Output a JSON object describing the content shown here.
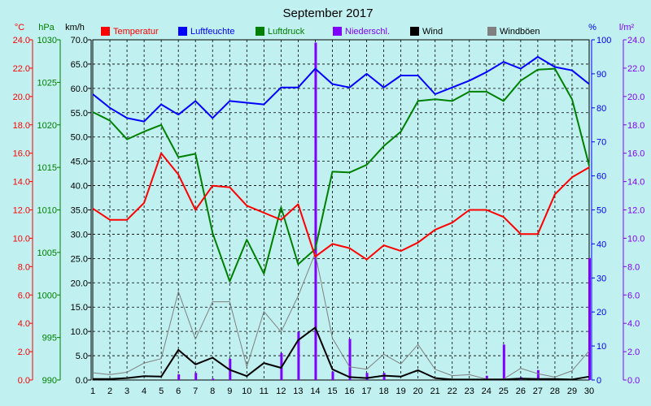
{
  "chart_data": {
    "type": "line",
    "title": "September 2017",
    "x": [
      1,
      2,
      3,
      4,
      5,
      6,
      7,
      8,
      9,
      10,
      11,
      12,
      13,
      14,
      15,
      16,
      17,
      18,
      19,
      20,
      21,
      22,
      23,
      24,
      25,
      26,
      27,
      28,
      29,
      30
    ],
    "xlim": [
      1,
      30
    ],
    "grid": true,
    "legend_position": "top",
    "axes": {
      "temp": {
        "unit": "°C",
        "range": [
          0,
          24
        ],
        "ticks": [
          "0.0",
          "2.0",
          "4.0",
          "6.0",
          "8.0",
          "10.0",
          "12.0",
          "14.0",
          "16.0",
          "18.0",
          "20.0",
          "22.0",
          "24.0"
        ],
        "color": "#ff0000"
      },
      "pressure": {
        "unit": "hPa",
        "range": [
          990,
          1030
        ],
        "ticks": [
          "990",
          "995",
          "1000",
          "1005",
          "1010",
          "1015",
          "1020",
          "1025",
          "1030"
        ],
        "color": "#008000"
      },
      "wind": {
        "unit": "km/h",
        "range": [
          0,
          70
        ],
        "ticks": [
          "0.0",
          "5.0",
          "10.0",
          "15.0",
          "20.0",
          "25.0",
          "30.0",
          "35.0",
          "40.0",
          "45.0",
          "50.0",
          "55.0",
          "60.0",
          "65.0",
          "70.0"
        ],
        "color": "#000000"
      },
      "humidity": {
        "unit": "%",
        "range": [
          0,
          100
        ],
        "ticks": [
          "0",
          "10",
          "20",
          "30",
          "40",
          "50",
          "60",
          "70",
          "80",
          "90",
          "100"
        ],
        "color": "#0000ff"
      },
      "rain": {
        "unit": "l/m²",
        "range": [
          0,
          24
        ],
        "ticks": [
          "0.0",
          "2.0",
          "4.0",
          "6.0",
          "8.0",
          "10.0",
          "12.0",
          "14.0",
          "16.0",
          "18.0",
          "20.0",
          "22.0",
          "24.0"
        ],
        "color": "#8000ff"
      }
    },
    "series": [
      {
        "name": "Temperatur",
        "axis": "temp",
        "color": "#ff0000",
        "style": "line",
        "values": [
          12.1,
          11.3,
          11.3,
          12.5,
          16.0,
          14.5,
          12.0,
          13.7,
          13.6,
          12.3,
          11.8,
          11.3,
          12.4,
          8.7,
          9.6,
          9.3,
          8.5,
          9.5,
          9.1,
          9.7,
          10.6,
          11.1,
          12.0,
          12.0,
          11.5,
          10.3,
          10.3,
          13.1,
          14.3,
          15.0
        ]
      },
      {
        "name": "Luftfeuchte",
        "axis": "humidity",
        "color": "#0000ff",
        "style": "line",
        "values": [
          84,
          80,
          77,
          76,
          81,
          78,
          82,
          77,
          82,
          81.5,
          81,
          86,
          86,
          91.5,
          87,
          86,
          90,
          86,
          89.5,
          89.5,
          84,
          86,
          88,
          90.5,
          93.5,
          91.5,
          95,
          92,
          91,
          87
        ]
      },
      {
        "name": "Luftdruck",
        "axis": "pressure",
        "color": "#008000",
        "style": "line",
        "values": [
          1021.5,
          1020.5,
          1018.3,
          1019.2,
          1020.0,
          1016.2,
          1016.6,
          1007.3,
          1001.6,
          1006.5,
          1002.5,
          1010.3,
          1003.6,
          1005.4,
          1014.5,
          1014.4,
          1015.3,
          1017.5,
          1019.2,
          1022.8,
          1023.0,
          1022.8,
          1023.9,
          1023.9,
          1022.8,
          1025.2,
          1026.5,
          1026.6,
          1023.0,
          1015.2
        ]
      },
      {
        "name": "Niederschl.",
        "axis": "rain",
        "color": "#8000ff",
        "style": "bar",
        "values": [
          0,
          0,
          0,
          0,
          0,
          0.4,
          0.5,
          0.1,
          1.5,
          0,
          0,
          1.9,
          3.4,
          23.8,
          0.6,
          2.9,
          0.5,
          0.5,
          0,
          0,
          0,
          0,
          0,
          0.3,
          2.5,
          0.2,
          0.7,
          0,
          0,
          8.6
        ]
      },
      {
        "name": "Wind",
        "axis": "wind",
        "color": "#000000",
        "style": "line",
        "values": [
          0.2,
          0.2,
          0.4,
          0.8,
          0.7,
          6.2,
          3.2,
          4.6,
          2.1,
          0.8,
          3.5,
          2.5,
          8.2,
          10.8,
          2.2,
          0.6,
          0.4,
          0.9,
          0.7,
          2.0,
          0.4,
          0.1,
          0.1,
          0.1,
          0.1,
          0.3,
          0.2,
          0.2,
          0.1,
          0.7
        ]
      },
      {
        "name": "Windböen",
        "axis": "wind",
        "color": "#808080",
        "style": "line",
        "values": [
          1.5,
          1.1,
          1.6,
          3.5,
          4.4,
          18.2,
          8.4,
          16.1,
          16.1,
          2.7,
          14.1,
          9.9,
          17.3,
          26.1,
          8.6,
          2.7,
          2.2,
          5.3,
          3.3,
          7.3,
          2.2,
          0.9,
          1.1,
          0.2,
          0.2,
          2.4,
          1.3,
          0.6,
          1.9,
          6.0
        ]
      }
    ]
  }
}
